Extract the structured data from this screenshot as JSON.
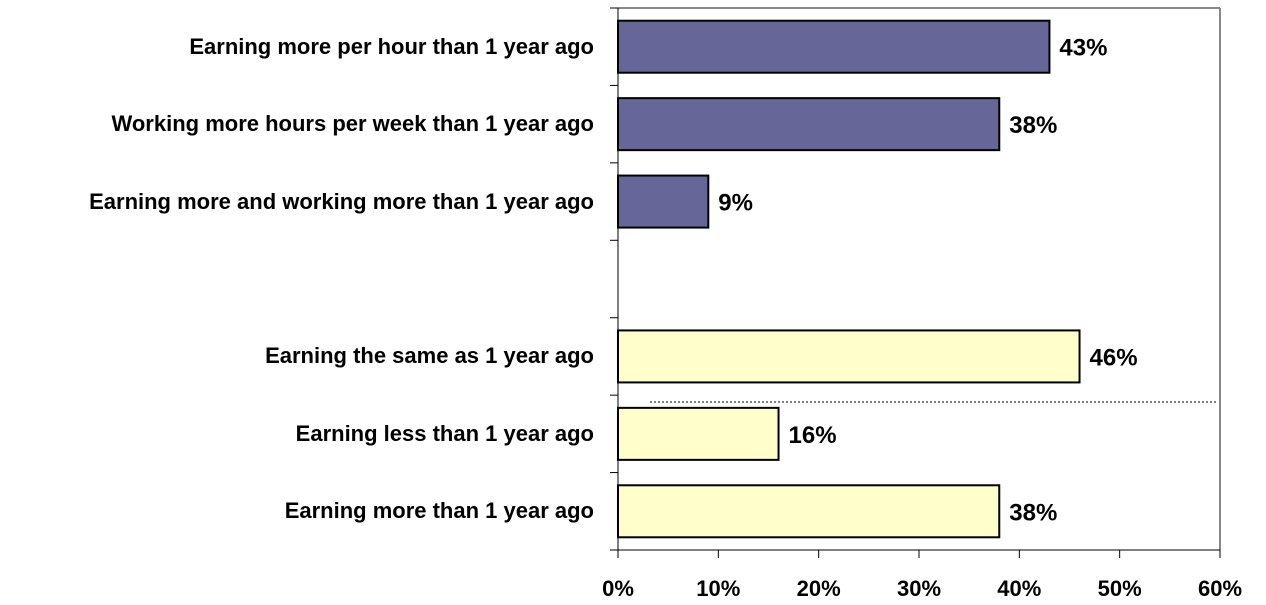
{
  "chart_data": {
    "type": "bar",
    "orientation": "horizontal",
    "categories": [
      "Earning more per hour than 1 year ago",
      "Working more hours per week than 1 year ago",
      "Earning more and working more than 1 year ago",
      "",
      "Earning the same as 1 year ago",
      "Earning less than 1 year ago",
      "Earning more than 1 year ago"
    ],
    "values": [
      43,
      38,
      9,
      null,
      46,
      16,
      38
    ],
    "value_labels": [
      "43%",
      "38%",
      "9%",
      "",
      "46%",
      "16%",
      "38%"
    ],
    "bar_colors": [
      "#666699",
      "#666699",
      "#666699",
      null,
      "#ffffcc",
      "#ffffcc",
      "#ffffcc"
    ],
    "xlim": [
      0,
      60
    ],
    "xticks": [
      "0%",
      "10%",
      "20%",
      "30%",
      "40%",
      "50%",
      "60%"
    ],
    "title": "",
    "xlabel": "",
    "ylabel": "",
    "grid": false,
    "legend": "none"
  }
}
